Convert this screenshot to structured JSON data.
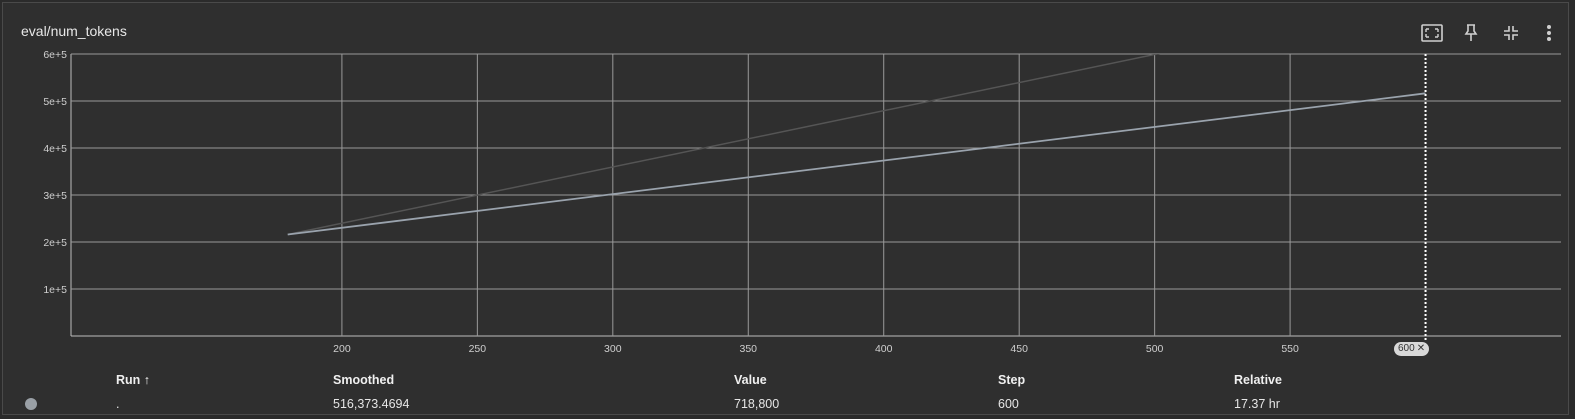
{
  "card": {
    "title": "eval/num_tokens",
    "toolbar": [
      {
        "name": "fit-domain-icon"
      },
      {
        "name": "pin-icon"
      },
      {
        "name": "collapse-icon"
      },
      {
        "name": "more-vert-icon"
      }
    ]
  },
  "chart_data": {
    "type": "line",
    "xlim": [
      100,
      650
    ],
    "ylim": [
      0,
      600000
    ],
    "x_ticks": [
      "200",
      "250",
      "300",
      "350",
      "400",
      "450",
      "500",
      "550"
    ],
    "y_ticks": [
      "1e+5",
      "2e+5",
      "3e+5",
      "4e+5",
      "5e+5",
      "6e+5"
    ],
    "x_tick_values": [
      200,
      250,
      300,
      350,
      400,
      450,
      500,
      550
    ],
    "y_tick_values": [
      100000,
      200000,
      300000,
      400000,
      500000,
      600000
    ],
    "grid": true,
    "series": [
      {
        "role": "raw",
        "color": "#555555",
        "x": [
          180,
          600
        ],
        "y": [
          216000,
          718800
        ]
      },
      {
        "role": "smoothed",
        "color": "#9aa3ad",
        "x": [
          180,
          600
        ],
        "y": [
          216000,
          516373.4694
        ]
      }
    ],
    "hover_step": 600,
    "hover_step_label": "600"
  },
  "runs_table": {
    "headers": {
      "run": "Run ↑",
      "smoothed": "Smoothed",
      "value": "Value",
      "step": "Step",
      "relative": "Relative"
    },
    "row": {
      "dot_color": "#9aa0a6",
      "run": ".",
      "smoothed": "516,373.4694",
      "value": "718,800",
      "step": "600",
      "relative": "17.37 hr"
    }
  }
}
